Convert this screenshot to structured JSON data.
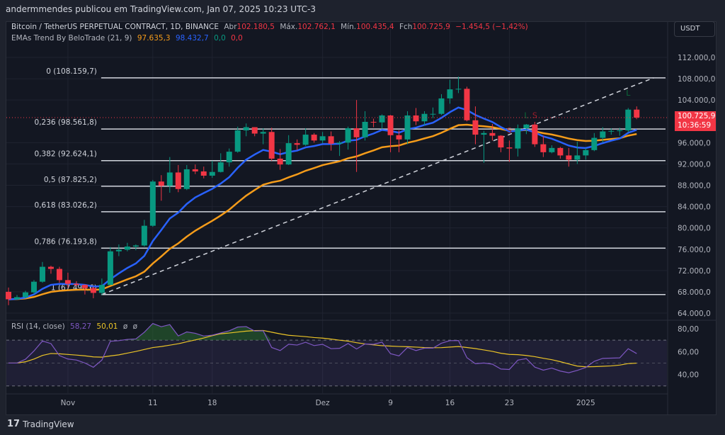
{
  "topline": "andermmendes publicou em TradingView.com, Jan 07, 2025 10:23 UTC-3",
  "legend": {
    "symbol": "Bitcoin / TetherUS PERPETUAL CONTRACT, 1D, BINANCE",
    "open_label": "Abr",
    "open": "102.180,5",
    "high_label": "Máx.",
    "high": "102.762,1",
    "low_label": "Mín.",
    "low": "100.435,4",
    "close_label": "Fch",
    "close": "100.725,9",
    "change": "−1.454,5 (−1,42%)",
    "indicator": "EMAs Trend By BeloTrade (21, 9)",
    "ema_slow": "97.635,3",
    "ema_fast": "98.432,7",
    "v1": "0,0",
    "v2": "0,0",
    "rsi": "RSI (14, close)",
    "rsi_value": "58,27",
    "rsi_ma": "50,01",
    "rsi_x1": "ø",
    "rsi_x2": "ø"
  },
  "currency_button": "USDT",
  "price_label": {
    "price": "100.725,9",
    "countdown": "10:36:59"
  },
  "footer_logo": "TradingView",
  "colors": {
    "up": "#089981",
    "down": "#f23645",
    "ema_fast": "#2962ff",
    "ema_slow": "#f59c1a",
    "rsi": "#7e57c2",
    "rsi_ma": "#ebc427",
    "bg": "#131722"
  },
  "chart_data": {
    "type": "candlestick",
    "price_ticks": [
      "112.000,0",
      "108.000,0",
      "104.000,0",
      "96.000,0",
      "92.000,0",
      "88.000,0",
      "84.000,0",
      "80.000,0",
      "76.000,0",
      "72.000,0",
      "68.000,0",
      "64.000,0"
    ],
    "price_tick_values": [
      112000,
      108000,
      104000,
      96000,
      92000,
      88000,
      84000,
      80000,
      76000,
      72000,
      68000,
      64000
    ],
    "ylim": [
      64000,
      112000
    ],
    "first_date": "2024-10-25",
    "time_ticks": [
      {
        "label": "Nov",
        "day": 7
      },
      {
        "label": "11",
        "day": 17
      },
      {
        "label": "18",
        "day": 24
      },
      {
        "label": "Dez",
        "day": 37
      },
      {
        "label": "9",
        "day": 45
      },
      {
        "label": "16",
        "day": 52
      },
      {
        "label": "23",
        "day": 59
      },
      {
        "label": "2025",
        "day": 68
      }
    ],
    "unit": "thousand USDT",
    "candles": [
      [
        68.0,
        68.8,
        65.5,
        66.6
      ],
      [
        66.6,
        67.4,
        66.5,
        67.0
      ],
      [
        67.0,
        68.2,
        66.8,
        67.9
      ],
      [
        67.9,
        70.2,
        67.5,
        69.9
      ],
      [
        69.9,
        73.6,
        69.7,
        72.7
      ],
      [
        72.7,
        72.9,
        71.4,
        72.3
      ],
      [
        72.3,
        72.7,
        69.7,
        70.2
      ],
      [
        70.2,
        71.6,
        68.8,
        69.5
      ],
      [
        69.5,
        70.0,
        69.0,
        69.3
      ],
      [
        69.3,
        69.4,
        67.5,
        68.7
      ],
      [
        68.7,
        69.0,
        66.8,
        67.8
      ],
      [
        67.8,
        70.5,
        67.4,
        69.3
      ],
      [
        69.3,
        76.4,
        69.3,
        75.6
      ],
      [
        75.6,
        76.9,
        74.7,
        75.9
      ],
      [
        75.9,
        77.2,
        75.6,
        76.5
      ],
      [
        76.5,
        76.9,
        75.8,
        76.7
      ],
      [
        76.7,
        81.5,
        76.5,
        80.4
      ],
      [
        80.4,
        89.0,
        80.2,
        88.7
      ],
      [
        88.7,
        89.9,
        85.1,
        87.9
      ],
      [
        87.9,
        93.3,
        86.6,
        90.4
      ],
      [
        90.4,
        91.8,
        86.7,
        87.3
      ],
      [
        87.3,
        91.8,
        87.1,
        91.0
      ],
      [
        91.0,
        91.9,
        90.1,
        90.6
      ],
      [
        90.6,
        91.5,
        89.3,
        89.8
      ],
      [
        89.8,
        92.6,
        89.4,
        90.5
      ],
      [
        90.5,
        94.0,
        90.4,
        92.3
      ],
      [
        92.3,
        94.9,
        91.5,
        94.3
      ],
      [
        94.3,
        99.0,
        94.1,
        98.3
      ],
      [
        98.3,
        99.6,
        97.2,
        98.9
      ],
      [
        98.9,
        98.9,
        97.2,
        97.7
      ],
      [
        97.7,
        98.7,
        95.7,
        98.0
      ],
      [
        98.0,
        98.8,
        92.6,
        93.0
      ],
      [
        93.0,
        94.8,
        90.9,
        91.9
      ],
      [
        91.9,
        97.4,
        91.8,
        95.9
      ],
      [
        95.9,
        96.6,
        94.6,
        95.6
      ],
      [
        95.6,
        98.7,
        95.4,
        97.5
      ],
      [
        97.5,
        97.8,
        96.0,
        96.4
      ],
      [
        96.4,
        98.0,
        95.9,
        97.2
      ],
      [
        97.2,
        98.1,
        94.5,
        95.8
      ],
      [
        95.8,
        96.3,
        93.5,
        96.0
      ],
      [
        96.0,
        99.0,
        94.7,
        98.7
      ],
      [
        98.7,
        104.0,
        90.5,
        97.0
      ],
      [
        97.0,
        101.9,
        96.4,
        99.9
      ],
      [
        99.9,
        100.5,
        98.9,
        99.8
      ],
      [
        99.8,
        101.3,
        98.6,
        101.1
      ],
      [
        101.1,
        101.2,
        94.2,
        97.4
      ],
      [
        97.4,
        98.3,
        94.2,
        96.6
      ],
      [
        96.6,
        101.9,
        95.7,
        101.1
      ],
      [
        101.1,
        102.5,
        99.3,
        100.0
      ],
      [
        100.0,
        101.9,
        99.2,
        101.4
      ],
      [
        101.4,
        102.6,
        100.6,
        101.4
      ],
      [
        101.4,
        105.1,
        101.2,
        104.3
      ],
      [
        104.3,
        107.8,
        103.3,
        106.0
      ],
      [
        106.0,
        108.4,
        105.3,
        106.1
      ],
      [
        106.1,
        106.5,
        100.0,
        100.2
      ],
      [
        100.2,
        102.8,
        95.7,
        97.5
      ],
      [
        97.5,
        98.2,
        92.2,
        97.8
      ],
      [
        97.8,
        99.5,
        96.4,
        97.3
      ],
      [
        97.3,
        97.4,
        94.2,
        95.1
      ],
      [
        95.1,
        96.4,
        92.4,
        94.9
      ],
      [
        94.9,
        99.4,
        93.4,
        98.7
      ],
      [
        98.7,
        99.5,
        97.6,
        99.4
      ],
      [
        99.4,
        99.9,
        95.2,
        95.7
      ],
      [
        95.7,
        97.3,
        93.3,
        94.2
      ],
      [
        94.2,
        95.5,
        94.0,
        95.0
      ],
      [
        95.0,
        95.2,
        93.0,
        93.6
      ],
      [
        93.6,
        95.0,
        91.5,
        92.8
      ],
      [
        92.8,
        96.2,
        92.0,
        93.6
      ],
      [
        93.6,
        95.0,
        92.8,
        94.6
      ],
      [
        94.6,
        97.8,
        94.4,
        96.9
      ],
      [
        96.9,
        98.9,
        96.0,
        98.1
      ],
      [
        98.1,
        98.7,
        97.5,
        98.2
      ],
      [
        98.2,
        98.8,
        97.3,
        98.3
      ],
      [
        98.3,
        102.5,
        97.9,
        102.2
      ],
      [
        102.2,
        102.8,
        100.4,
        100.7
      ]
    ],
    "fib_levels": [
      {
        "label": "0 (108.159,7)",
        "price": 108159.7
      },
      {
        "label": "0,236 (98.561,8)",
        "price": 98561.8
      },
      {
        "label": "0,382 (92.624,1)",
        "price": 92624.1
      },
      {
        "label": "0,5 (87.825,2)",
        "price": 87825.2
      },
      {
        "label": "0,618 (83.026,2)",
        "price": 83026.2
      },
      {
        "label": "0,786 (76.193,8)",
        "price": 76193.8
      },
      {
        "label": "1 (67.498,6)",
        "price": 67498.6
      }
    ],
    "fib_start_day": 11,
    "trend_line": {
      "from": {
        "day": 11,
        "price": 67498.6
      },
      "to": {
        "day": 76,
        "price": 108159.7
      }
    },
    "signals": [
      {
        "text": "S",
        "day": 59,
        "price": 97800,
        "side": "short"
      },
      {
        "text": "L",
        "day": 61,
        "price": 100600,
        "side": "long"
      },
      {
        "text": "S",
        "day": 62,
        "price": 100600,
        "side": "short"
      },
      {
        "text": "L",
        "day": 73,
        "price": 104800,
        "side": "long"
      }
    ],
    "ema_periods": [
      21,
      9
    ],
    "rsi": {
      "period": 14,
      "ticks": [
        "80,00",
        "60,00",
        "40,00"
      ],
      "tick_values": [
        80,
        60,
        40
      ],
      "bands": [
        70,
        50,
        30
      ],
      "ylim": [
        20,
        90
      ]
    }
  }
}
